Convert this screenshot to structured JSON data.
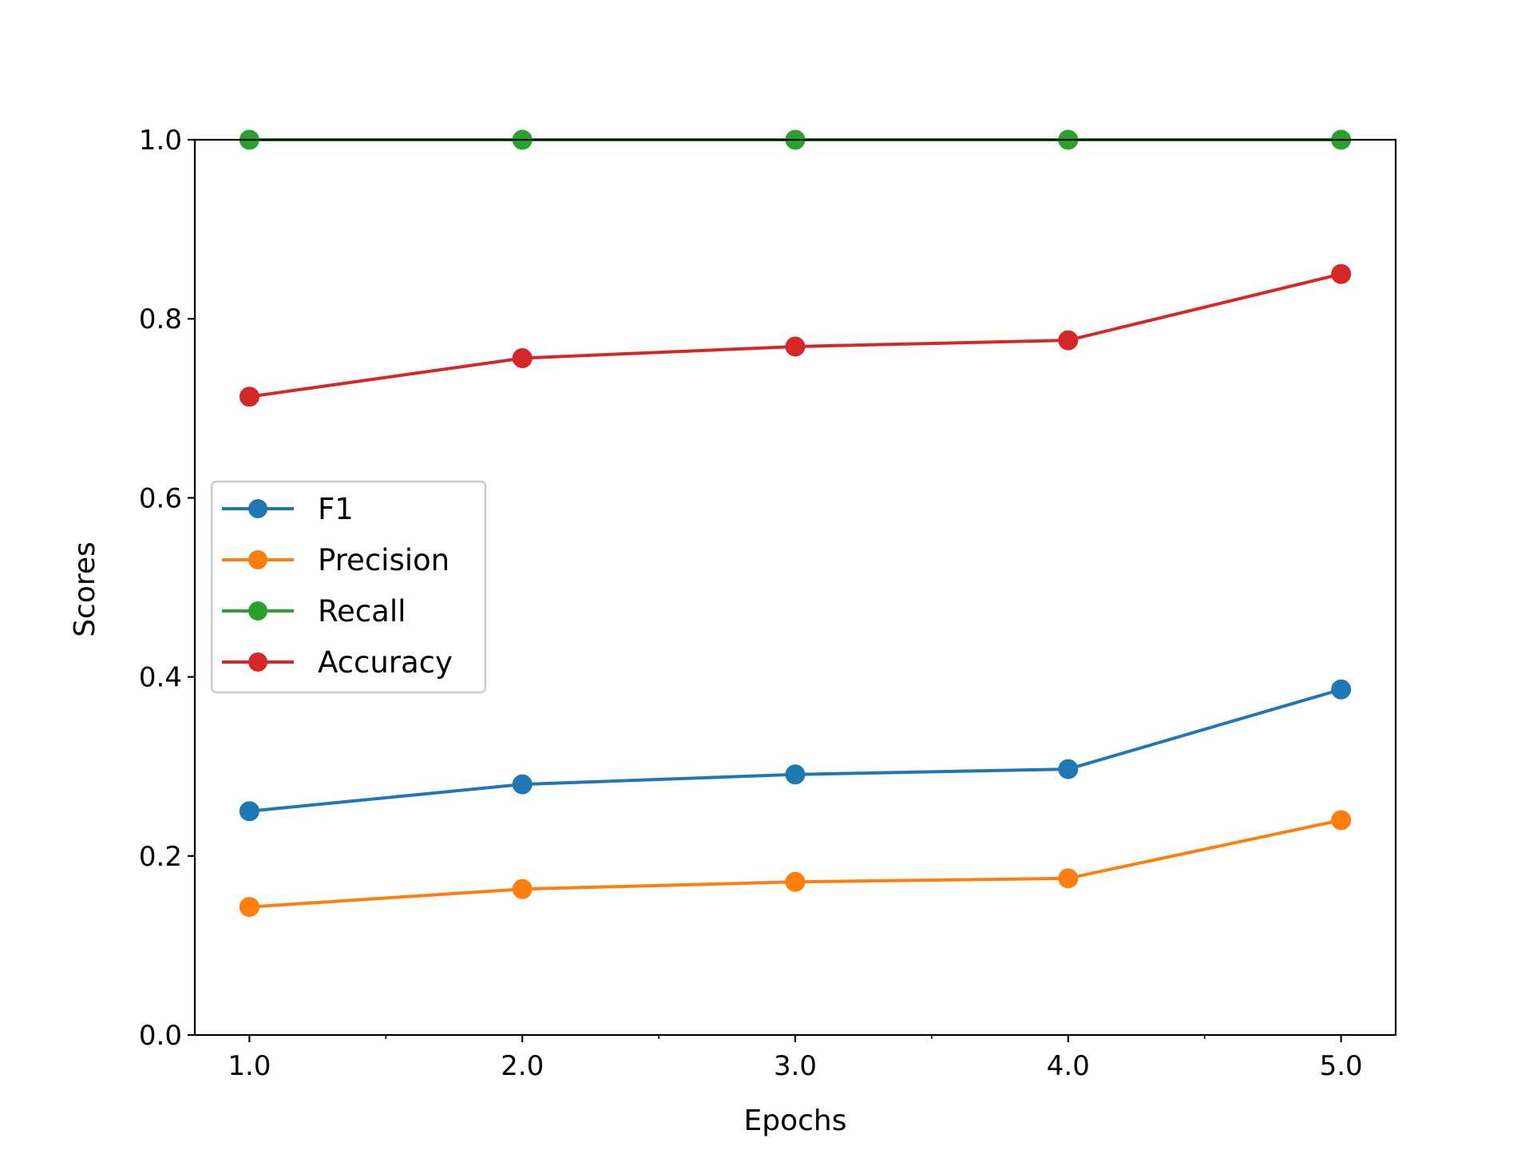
{
  "chart_data": {
    "type": "line",
    "title": "",
    "xlabel": "Epochs",
    "ylabel": "Scores",
    "x": [
      1.0,
      2.0,
      3.0,
      4.0,
      5.0
    ],
    "xticks": [
      "1.0",
      "2.0",
      "3.0",
      "4.0",
      "5.0"
    ],
    "xminor_ticks": [
      1.5,
      2.5,
      3.5,
      4.5
    ],
    "yticks": [
      "0.0",
      "0.2",
      "0.4",
      "0.6",
      "0.8",
      "1.0"
    ],
    "xlim": [
      0.8,
      5.2
    ],
    "ylim": [
      0.0,
      1.0
    ],
    "grid": false,
    "legend_position": "center-left",
    "series": [
      {
        "name": "F1",
        "color": "#1f77b4",
        "marker": "circle",
        "values": [
          0.25,
          0.28,
          0.291,
          0.297,
          0.386
        ]
      },
      {
        "name": "Precision",
        "color": "#ff7f0e",
        "marker": "circle",
        "values": [
          0.143,
          0.163,
          0.171,
          0.175,
          0.24
        ]
      },
      {
        "name": "Recall",
        "color": "#2ca02c",
        "marker": "circle",
        "values": [
          1.0,
          1.0,
          1.0,
          1.0,
          1.0
        ]
      },
      {
        "name": "Accuracy",
        "color": "#d62728",
        "marker": "circle",
        "values": [
          0.713,
          0.756,
          0.769,
          0.776,
          0.85
        ]
      }
    ]
  }
}
